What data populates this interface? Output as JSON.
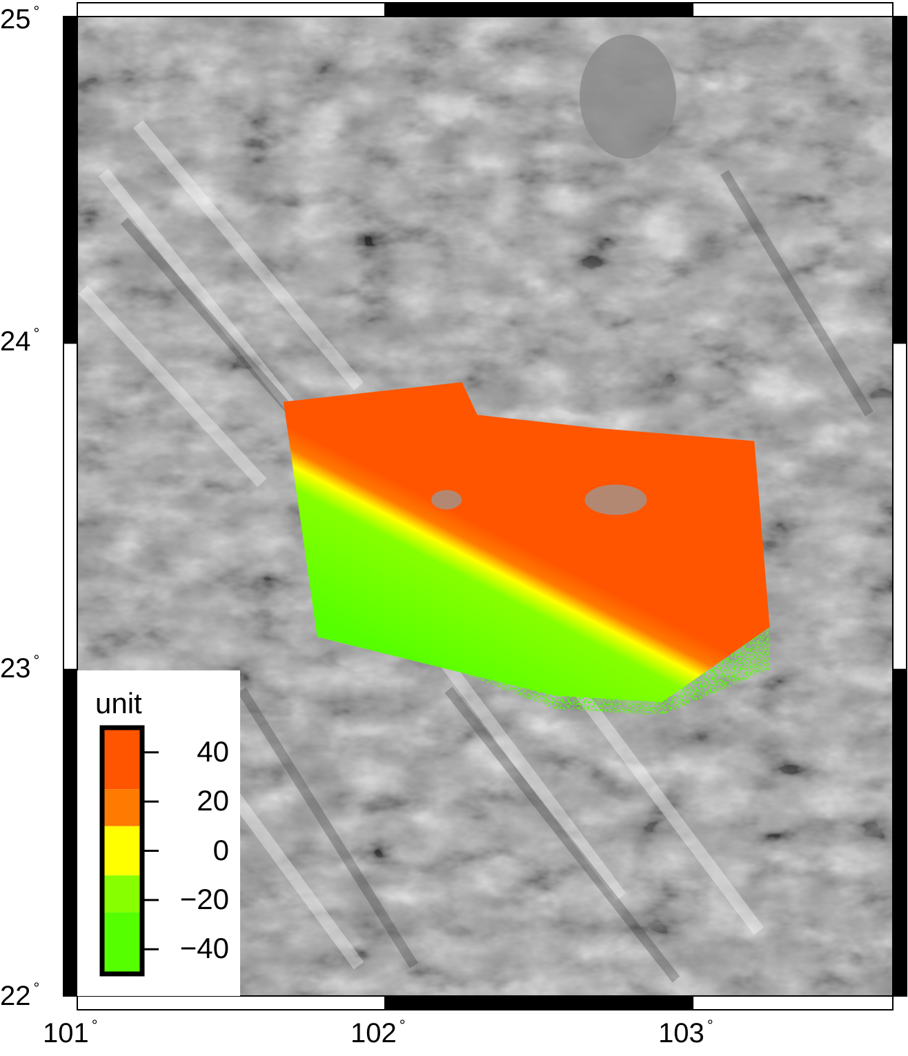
{
  "map": {
    "extent": {
      "lon_min": 101.0,
      "lon_max": 103.65,
      "lat_min": 22.0,
      "lat_max": 25.0
    },
    "frame_style": "checkerboard",
    "background": "grayscale shaded relief",
    "lon_ticks": [
      {
        "value": 101,
        "label": "101"
      },
      {
        "value": 102,
        "label": "102"
      },
      {
        "value": 103,
        "label": "103"
      }
    ],
    "lat_ticks": [
      {
        "value": 25,
        "label": "25"
      },
      {
        "value": 24,
        "label": "24"
      },
      {
        "value": 23,
        "label": "23"
      },
      {
        "value": 22,
        "label": "22"
      }
    ],
    "degree_symbol": "°"
  },
  "overlay": {
    "footprint_lonlat": [
      [
        101.67,
        23.82
      ],
      [
        102.25,
        23.88
      ],
      [
        102.3,
        23.78
      ],
      [
        102.68,
        23.74
      ],
      [
        103.2,
        23.7
      ],
      [
        103.25,
        23.13
      ],
      [
        102.9,
        22.9
      ],
      [
        102.55,
        22.92
      ],
      [
        101.78,
        23.1
      ]
    ]
  },
  "colorbar": {
    "title": "unit",
    "location": "bottom-left",
    "min": -50,
    "max": 50,
    "segments": [
      {
        "from": 25,
        "to": 50,
        "color": "#ff5500"
      },
      {
        "from": 10,
        "to": 25,
        "color": "#ff7a00"
      },
      {
        "from": -10,
        "to": 10,
        "color": "#ffff00"
      },
      {
        "from": -25,
        "to": -10,
        "color": "#88ff00"
      },
      {
        "from": -50,
        "to": -25,
        "color": "#55ff00"
      }
    ],
    "ticks": [
      {
        "value": 40,
        "label": "40"
      },
      {
        "value": 20,
        "label": "20"
      },
      {
        "value": 0,
        "label": "0"
      },
      {
        "value": -20,
        "label": "−20"
      },
      {
        "value": -40,
        "label": "−40"
      }
    ]
  }
}
